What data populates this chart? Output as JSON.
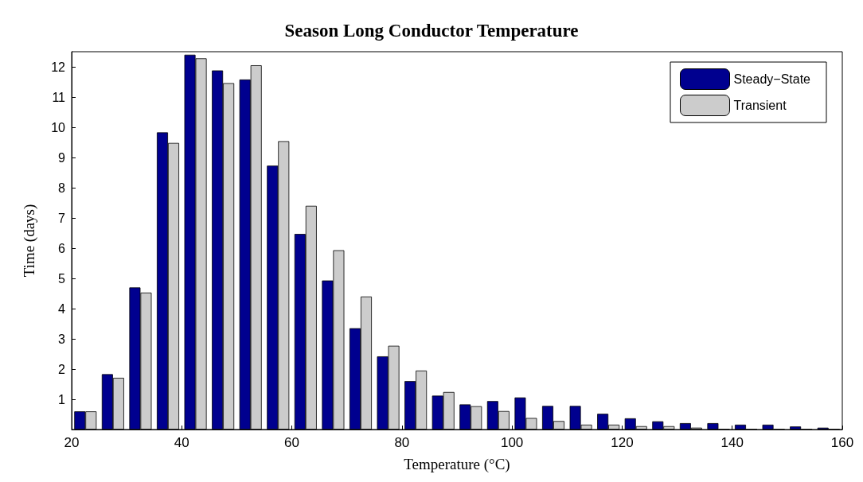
{
  "chart_data": {
    "type": "bar",
    "title": "Season Long Conductor Temperature",
    "xlabel": "Temperature (°C)",
    "ylabel": "Time (days)",
    "x": [
      22.5,
      27.5,
      32.5,
      37.5,
      42.5,
      47.5,
      52.5,
      57.5,
      62.5,
      67.5,
      72.5,
      77.5,
      82.5,
      87.5,
      92.5,
      97.5,
      102.5,
      107.5,
      112.5,
      117.5,
      122.5,
      127.5,
      132.5,
      137.5,
      142.5,
      147.5,
      152.5,
      157.5
    ],
    "series": [
      {
        "name": "Steady−State",
        "color": "#00008f",
        "values": [
          0.6,
          1.83,
          4.7,
          9.83,
          12.4,
          11.88,
          11.58,
          8.73,
          6.47,
          4.93,
          3.35,
          2.42,
          1.6,
          1.12,
          0.83,
          0.94,
          1.06,
          0.78,
          0.78,
          0.52,
          0.37,
          0.27,
          0.21,
          0.21,
          0.16,
          0.16,
          0.1,
          0.06
        ]
      },
      {
        "name": "Transient",
        "color": "#cccccc",
        "values": [
          0.6,
          1.71,
          4.53,
          9.48,
          12.28,
          11.46,
          12.05,
          9.54,
          7.4,
          5.93,
          4.4,
          2.77,
          1.95,
          1.24,
          0.77,
          0.61,
          0.38,
          0.28,
          0.16,
          0.16,
          0.11,
          0.11,
          0.06,
          0,
          0,
          0,
          0,
          0
        ]
      }
    ],
    "xlim": [
      20,
      160
    ],
    "xticks": [
      20,
      40,
      60,
      80,
      100,
      120,
      140,
      160
    ],
    "ylim": [
      0,
      12.5
    ],
    "yticks": [
      1,
      2,
      3,
      4,
      5,
      6,
      7,
      8,
      9,
      10,
      11,
      12
    ],
    "grid": false,
    "legend": "top right"
  }
}
